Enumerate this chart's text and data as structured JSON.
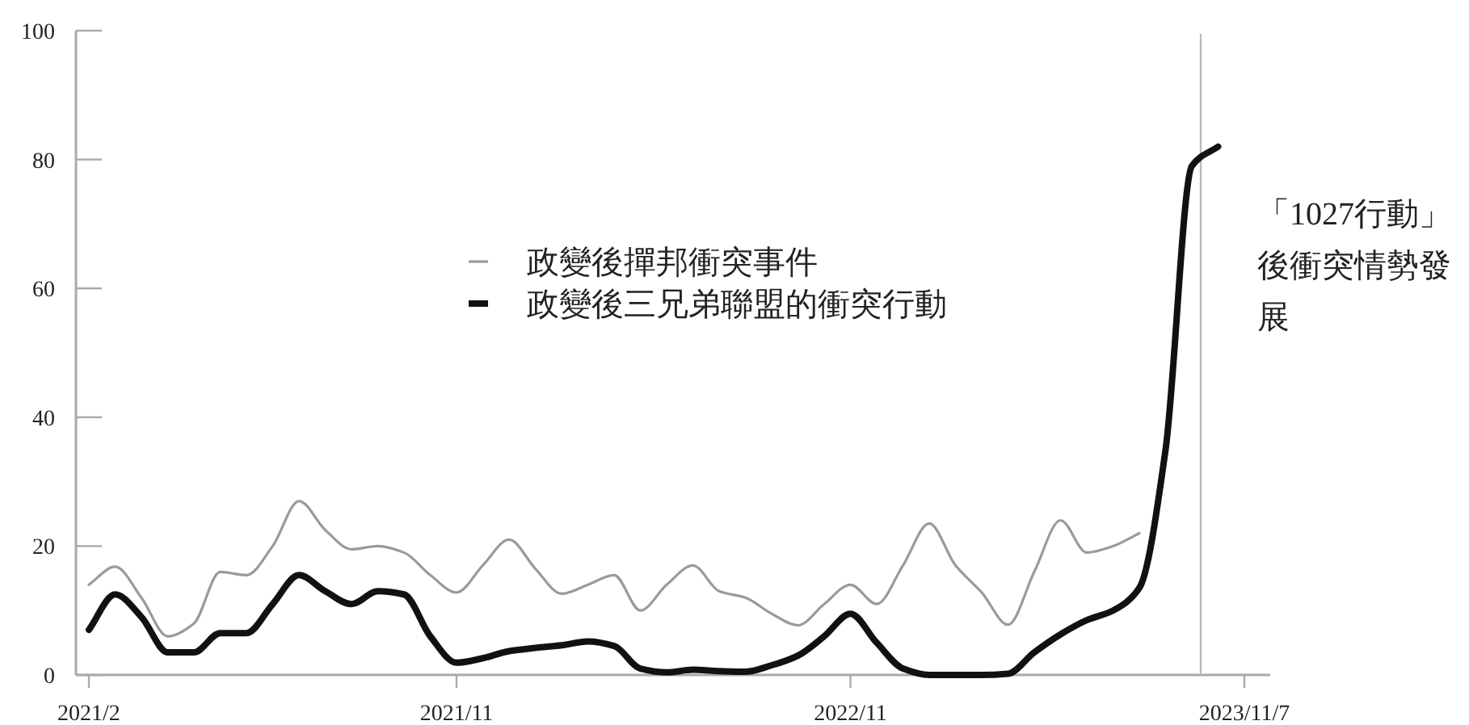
{
  "chart_data": {
    "type": "line",
    "ylim": [
      0,
      100
    ],
    "categories": [
      "2021/2",
      null,
      null,
      null,
      null,
      null,
      null,
      null,
      null,
      null,
      null,
      null,
      null,
      null,
      "2021/11",
      null,
      null,
      null,
      null,
      null,
      null,
      null,
      null,
      null,
      null,
      null,
      null,
      null,
      null,
      "2022/11",
      null,
      null,
      null,
      null,
      null,
      null,
      null,
      null,
      null,
      null,
      null,
      null,
      null,
      null,
      "2023/11/7"
    ],
    "yticks": [
      0,
      20,
      40,
      60,
      80,
      100
    ],
    "series": [
      {
        "name": "政變後撣邦衝突事件",
        "color": "#9a9a9a",
        "values": [
          14,
          16.8,
          12,
          6,
          8,
          16,
          15.5,
          20,
          27,
          22.5,
          19.5,
          20,
          19,
          15.5,
          12.8,
          17,
          21,
          16.5,
          12.6,
          14,
          15.5,
          10,
          14,
          17,
          13,
          12,
          9.5,
          7.7,
          11,
          14,
          11,
          17,
          23.5,
          17,
          12.8,
          7.8,
          16,
          24,
          19,
          20,
          22,
          null,
          null,
          null,
          null
        ]
      },
      {
        "name": "政變後三兄弟聯盟的衝突行動",
        "color": "#111111",
        "values": [
          7,
          12.5,
          9,
          3.5,
          3.5,
          6.5,
          6.5,
          11,
          15.5,
          13,
          11,
          13,
          12.5,
          6,
          1.9,
          2.6,
          3.7,
          4.2,
          4.6,
          5.2,
          4.5,
          1,
          0.4,
          0.8,
          0.6,
          0.5,
          1.5,
          3,
          6,
          9.5,
          5,
          1,
          0,
          0,
          0,
          0.2,
          3.5,
          6.3,
          8.5,
          10,
          13.5,
          35,
          79,
          82,
          null
        ]
      }
    ],
    "annotations": [
      "「1027行動」後衝突情勢發展"
    ],
    "legend": "center",
    "grid": false
  }
}
